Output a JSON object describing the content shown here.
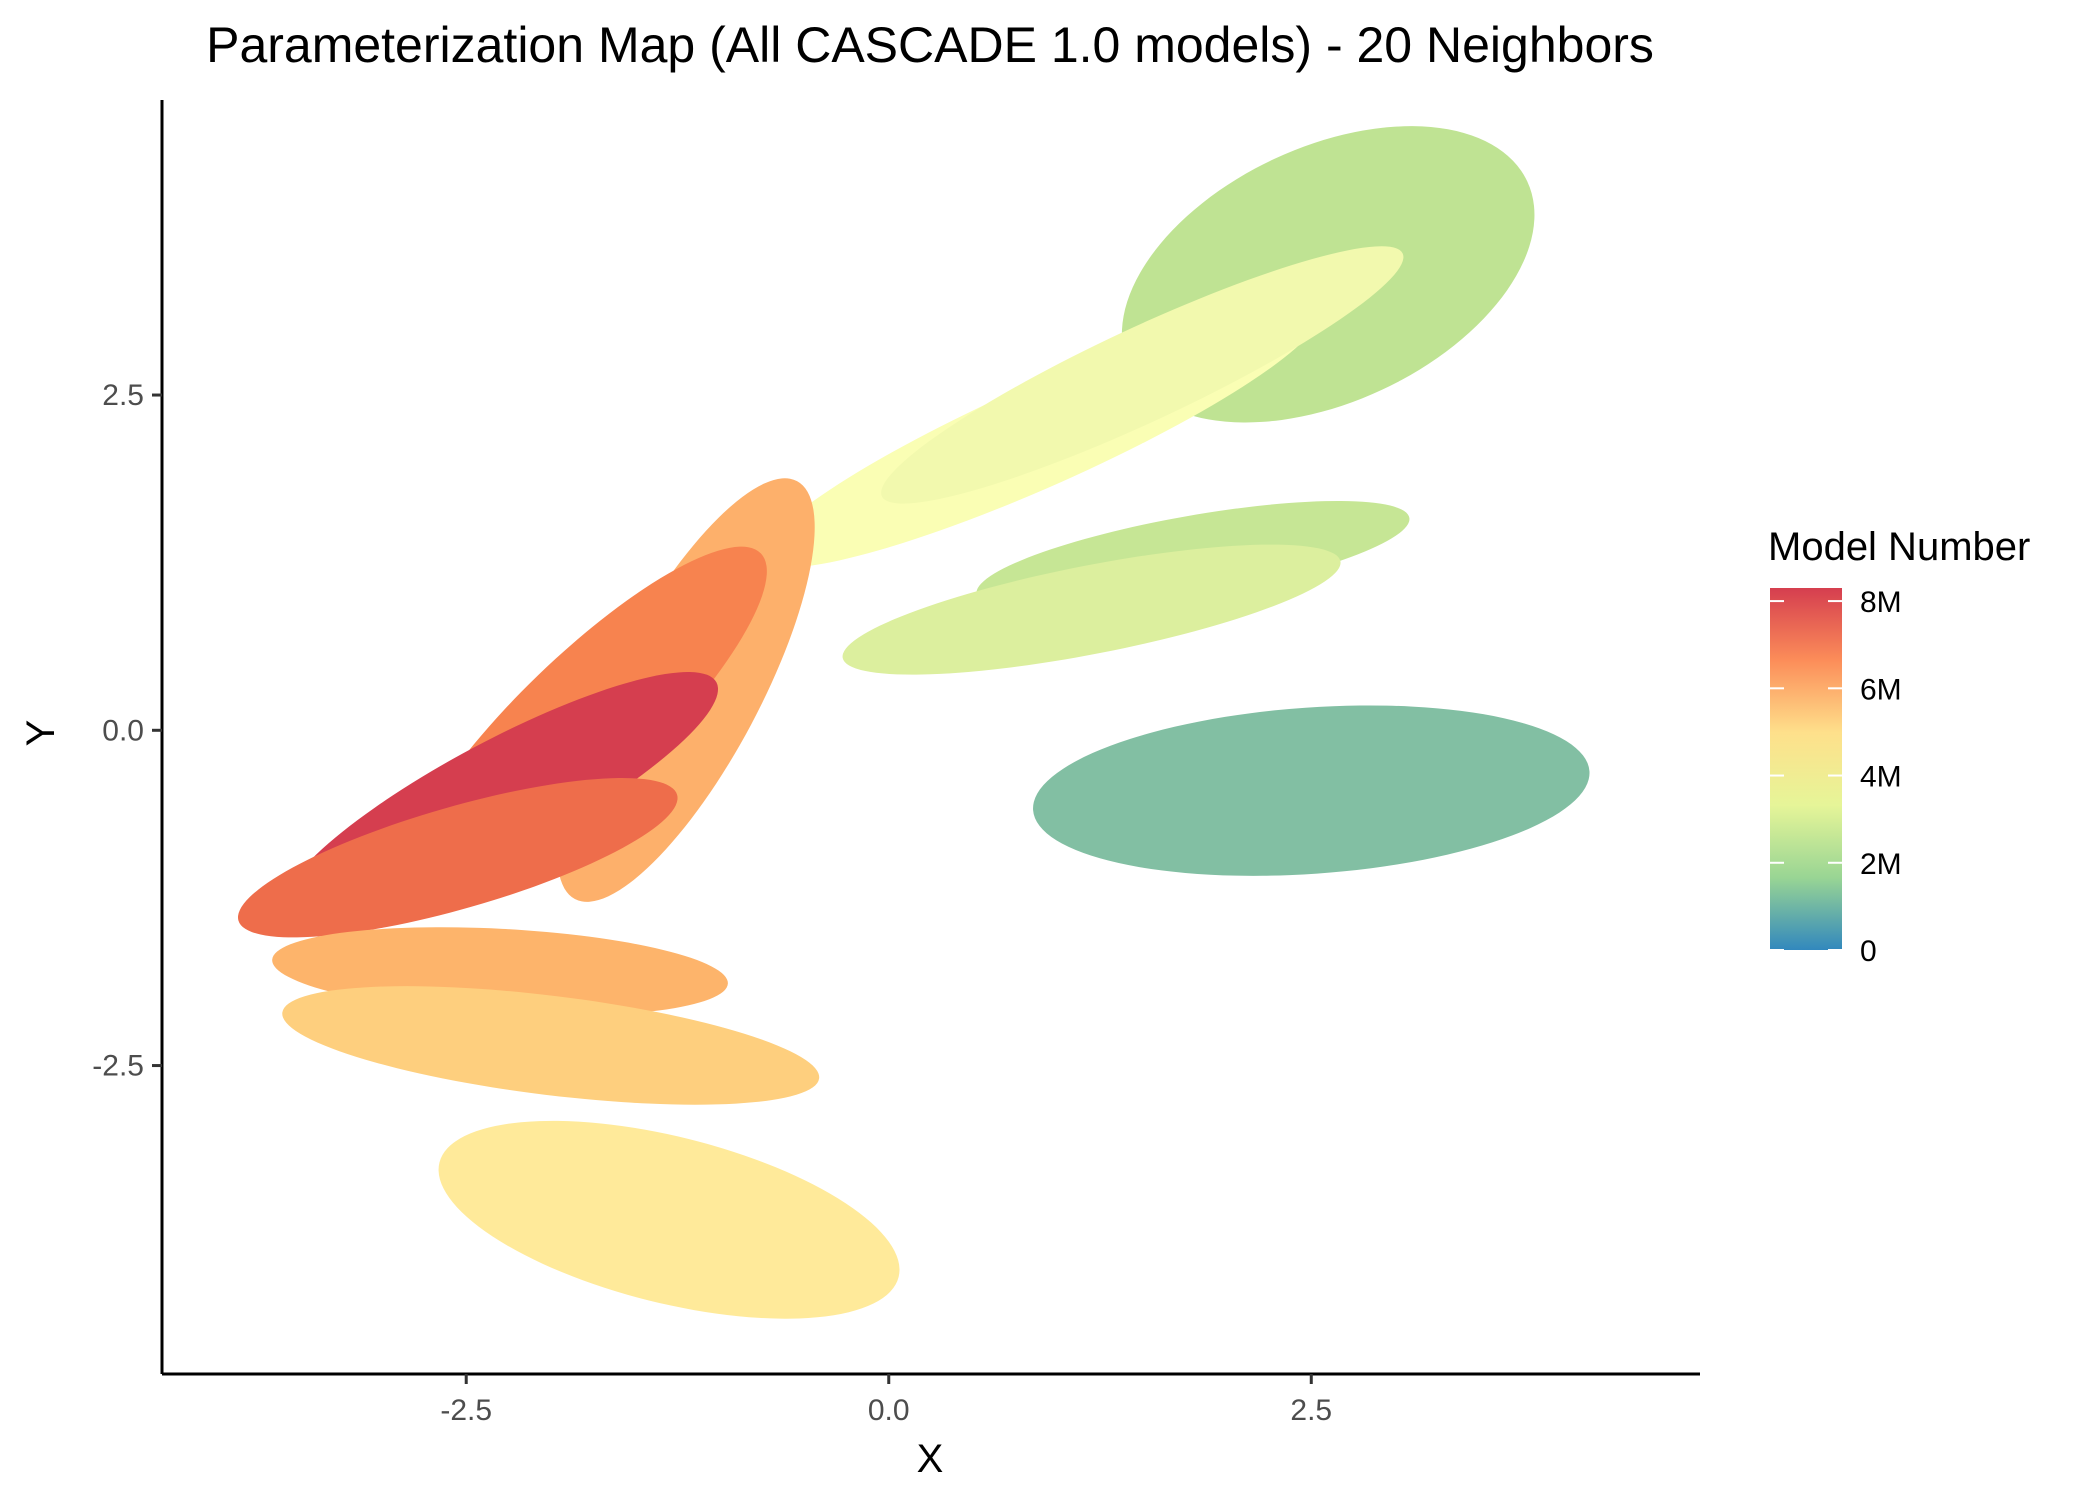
{
  "chart_data": {
    "type": "scatter",
    "title": "Parameterization Map (All CASCADE 1.0 models) - 20 Neighbors",
    "xlabel": "X",
    "ylabel": "Y",
    "xlim": [
      -4.3,
      4.8
    ],
    "ylim": [
      -4.8,
      4.7
    ],
    "x_ticks": [
      {
        "value": -2.5,
        "label": "-2.5"
      },
      {
        "value": 0.0,
        "label": "0.0"
      },
      {
        "value": 2.5,
        "label": "2.5"
      }
    ],
    "y_ticks": [
      {
        "value": 2.5,
        "label": "2.5"
      },
      {
        "value": 0.0,
        "label": "0.0"
      },
      {
        "value": -2.5,
        "label": "-2.5"
      }
    ],
    "grid": false,
    "legend": {
      "title": "Model Number",
      "position": "right",
      "range": [
        0,
        8300000
      ],
      "ticks": [
        {
          "value": 8000000,
          "label": "8M"
        },
        {
          "value": 6000000,
          "label": "6M"
        },
        {
          "value": 4000000,
          "label": "4M"
        },
        {
          "value": 2000000,
          "label": "2M"
        },
        {
          "value": 0,
          "label": "0"
        }
      ],
      "colors": [
        "#3288bd",
        "#99d594",
        "#e6f598",
        "#fee08b",
        "#fc8d59",
        "#d53e4f"
      ]
    },
    "clusters": [
      {
        "cx": 2.6,
        "cy": 3.4,
        "rx": 1.3,
        "ry": 0.95,
        "angle": -25,
        "model_number": 2300000,
        "color": "#bfe393"
      },
      {
        "cx": 0.9,
        "cy": 2.2,
        "rx": 1.8,
        "ry": 0.38,
        "angle": -24,
        "model_number": 3800000,
        "color": "#fafeb4"
      },
      {
        "cx": 1.5,
        "cy": 2.65,
        "rx": 1.7,
        "ry": 0.35,
        "angle": -25,
        "model_number": 3500000,
        "color": "#f2f9ae"
      },
      {
        "cx": 1.8,
        "cy": 1.3,
        "rx": 1.3,
        "ry": 0.3,
        "angle": -10,
        "model_number": 2600000,
        "color": "#c6e695"
      },
      {
        "cx": 1.2,
        "cy": 0.9,
        "rx": 1.5,
        "ry": 0.33,
        "angle": -11,
        "model_number": 3200000,
        "color": "#dcef9e"
      },
      {
        "cx": 2.5,
        "cy": -0.45,
        "rx": 1.65,
        "ry": 0.62,
        "angle": -4,
        "model_number": 800000,
        "color": "#82bfa3"
      },
      {
        "cx": -1.2,
        "cy": 0.3,
        "rx": 1.4,
        "ry": 0.55,
        "angle": -62,
        "model_number": 6200000,
        "color": "#fdb06b"
      },
      {
        "cx": -1.8,
        "cy": 0.05,
        "rx": 1.45,
        "ry": 0.5,
        "angle": -44,
        "model_number": 7000000,
        "color": "#f7834f"
      },
      {
        "cx": -2.3,
        "cy": -0.5,
        "rx": 1.45,
        "ry": 0.42,
        "angle": -28,
        "model_number": 8200000,
        "color": "#d53e4f"
      },
      {
        "cx": -2.55,
        "cy": -0.95,
        "rx": 1.35,
        "ry": 0.38,
        "angle": -16,
        "model_number": 7300000,
        "color": "#ee6d4b"
      },
      {
        "cx": -2.3,
        "cy": -1.8,
        "rx": 1.35,
        "ry": 0.32,
        "angle": 3,
        "model_number": 5800000,
        "color": "#fdb46b"
      },
      {
        "cx": -2.0,
        "cy": -2.35,
        "rx": 1.6,
        "ry": 0.37,
        "angle": 7,
        "model_number": 5300000,
        "color": "#fecf7e"
      },
      {
        "cx": -1.3,
        "cy": -3.65,
        "rx": 1.4,
        "ry": 0.62,
        "angle": 14,
        "model_number": 4900000,
        "color": "#ffea9a"
      }
    ]
  }
}
